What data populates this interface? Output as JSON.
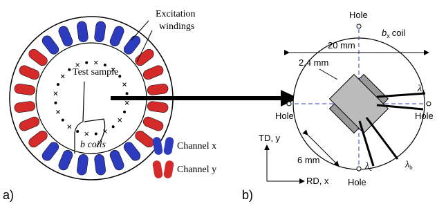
{
  "panel_a": {
    "label": "a)",
    "excitation": [
      "Excitation",
      "windings"
    ],
    "test_sample": "Test sample",
    "coils": "b coils",
    "legend": [
      {
        "label": "Channel x"
      },
      {
        "label": "Channel y"
      }
    ]
  },
  "panel_b": {
    "label": "b)",
    "holes": [
      "Hole",
      "Hole",
      "Hole",
      "Hole"
    ],
    "bx_coil": {
      "symbol": "b",
      "subscript": "x",
      "text": "coil"
    },
    "width": "20 mm",
    "gap": "2.4 mm",
    "depth": "6 mm",
    "lambda_a": {
      "symbol": "λ",
      "subscript": "a"
    },
    "lambda_b": {
      "symbol": "λ",
      "subscript": "b"
    },
    "lambda_c": {
      "symbol": "λ",
      "subscript": "c"
    },
    "td": "TD, y",
    "rd": "RD, x"
  }
}
